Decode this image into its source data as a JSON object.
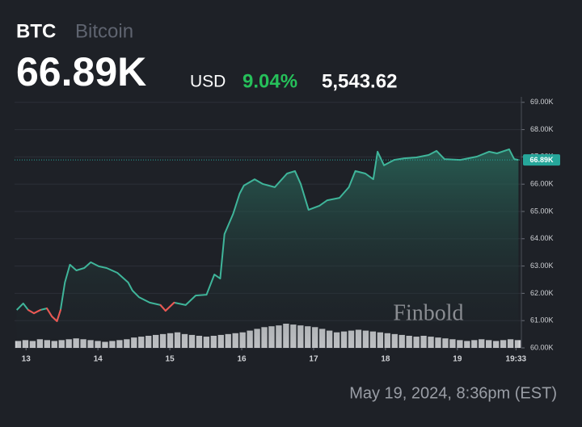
{
  "header": {
    "symbol": "BTC",
    "name": "Bitcoin",
    "price": "66.89K",
    "currency": "USD",
    "change_pct": "9.04%",
    "change_abs": "5,543.62"
  },
  "footer": {
    "timestamp": "May 19, 2024, 8:36pm (EST)"
  },
  "watermark": "Finbold",
  "chart_data": {
    "type": "line",
    "series": [
      {
        "name": "BTC",
        "color": "#3fb59a",
        "negative_color": "#ef5350",
        "x": [
          12.87,
          12.96,
          13.03,
          13.11,
          13.2,
          13.29,
          13.36,
          13.43,
          13.48,
          13.54,
          13.61,
          13.7,
          13.81,
          13.9,
          14.01,
          14.12,
          14.27,
          14.42,
          14.48,
          14.57,
          14.72,
          14.87,
          14.94,
          15.06,
          15.22,
          15.36,
          15.51,
          15.62,
          15.7,
          15.76,
          15.88,
          15.97,
          16.03,
          16.18,
          16.29,
          16.46,
          16.63,
          16.74,
          16.82,
          16.93,
          17.08,
          17.19,
          17.36,
          17.49,
          17.58,
          17.72,
          17.83,
          17.89,
          17.98,
          18.12,
          18.26,
          18.43,
          18.6,
          18.71,
          18.82,
          19.04,
          19.27,
          19.44,
          19.55,
          19.72,
          19.79,
          19.85
        ],
        "values": [
          61390,
          61630,
          61390,
          61270,
          61390,
          61450,
          61150,
          60980,
          61390,
          62400,
          63050,
          62840,
          62930,
          63140,
          62990,
          62930,
          62750,
          62400,
          62100,
          61860,
          61660,
          61570,
          61360,
          61660,
          61570,
          61920,
          61950,
          62690,
          62540,
          64170,
          64910,
          65650,
          65950,
          66180,
          66010,
          65890,
          66390,
          66480,
          66010,
          65060,
          65210,
          65410,
          65500,
          65890,
          66480,
          66390,
          66180,
          67190,
          66690,
          66890,
          66950,
          66980,
          67070,
          67220,
          66920,
          66890,
          67010,
          67190,
          67130,
          67280,
          66920,
          66890
        ]
      }
    ],
    "volume": {
      "color": "#cfd1d4",
      "values": [
        8,
        9,
        8,
        10,
        9,
        8,
        9,
        10,
        11,
        10,
        9,
        8,
        7,
        8,
        9,
        10,
        12,
        13,
        14,
        15,
        16,
        17,
        18,
        16,
        15,
        14,
        13,
        14,
        15,
        16,
        17,
        18,
        20,
        22,
        24,
        25,
        26,
        28,
        27,
        26,
        25,
        24,
        22,
        20,
        18,
        19,
        20,
        21,
        20,
        19,
        18,
        17,
        16,
        15,
        14,
        13,
        14,
        13,
        12,
        11,
        10,
        9,
        8,
        9,
        10,
        9,
        8,
        9,
        10,
        9
      ]
    },
    "last_price": {
      "value": 66890,
      "label": "66.89K",
      "color": "#26a69a"
    },
    "xlim": [
      12.84,
      19.89
    ],
    "xticks": [
      13,
      14,
      15,
      16,
      17,
      18,
      19,
      {
        "value": 19.815,
        "label": "19:33"
      }
    ],
    "ylim": [
      60000,
      69200
    ],
    "yticks": [
      {
        "value": 60000,
        "label": "60.00K"
      },
      {
        "value": 61000,
        "label": "61.00K"
      },
      {
        "value": 62000,
        "label": "62.00K"
      },
      {
        "value": 63000,
        "label": "63.00K"
      },
      {
        "value": 64000,
        "label": "64.00K"
      },
      {
        "value": 65000,
        "label": "65.00K"
      },
      {
        "value": 66000,
        "label": "66.00K"
      },
      {
        "value": 67000,
        "label": "67.00K"
      },
      {
        "value": 68000,
        "label": "68.00K"
      },
      {
        "value": 69000,
        "label": "69.00K"
      }
    ],
    "grid": true
  }
}
